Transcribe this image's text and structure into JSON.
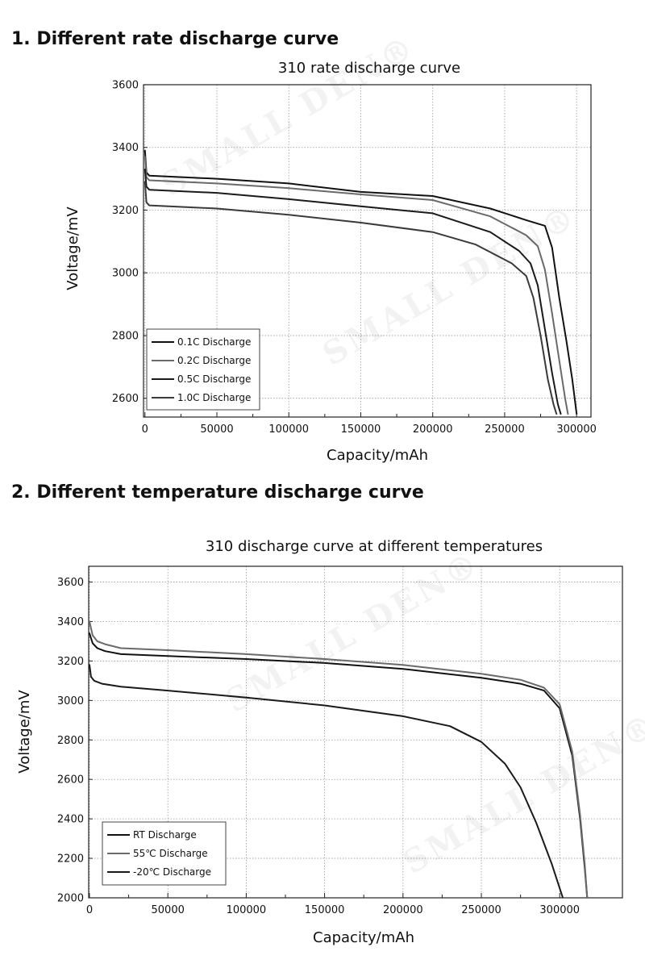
{
  "sections": [
    {
      "heading": "1. Different rate discharge curve"
    },
    {
      "heading": "2. Different temperature discharge curve"
    }
  ],
  "watermark": {
    "text": "SMALL DEN®"
  },
  "chart_data": [
    {
      "type": "line",
      "title": "310 rate discharge curve",
      "xlabel": "Capacity/mAh",
      "ylabel": "Voltage/mV",
      "xlim": [
        -1000,
        310000
      ],
      "ylim": [
        2540,
        3600
      ],
      "xticks": [
        0,
        50000,
        100000,
        150000,
        200000,
        250000,
        300000
      ],
      "yticks": [
        2600,
        2800,
        3000,
        3200,
        3400,
        3600
      ],
      "grid": true,
      "legend_position": "bottom-left",
      "colors": [
        "#111111",
        "#6a6a6a",
        "#1a1a1a",
        "#3a3a3a"
      ],
      "series": [
        {
          "name": "0.1C Discharge",
          "x": [
            0,
            1000,
            3000,
            50000,
            100000,
            150000,
            200000,
            240000,
            265000,
            278000,
            283000,
            288000,
            293000,
            297000,
            300000
          ],
          "y": [
            3390,
            3320,
            3310,
            3300,
            3285,
            3258,
            3245,
            3205,
            3168,
            3150,
            3080,
            2920,
            2780,
            2660,
            2550
          ]
        },
        {
          "name": "0.2C Discharge",
          "x": [
            0,
            1000,
            3000,
            50000,
            100000,
            150000,
            200000,
            240000,
            265000,
            273000,
            278000,
            283000,
            288000,
            292000,
            294000
          ],
          "y": [
            3370,
            3305,
            3295,
            3285,
            3270,
            3250,
            3232,
            3180,
            3120,
            3085,
            3010,
            2870,
            2720,
            2600,
            2550
          ]
        },
        {
          "name": "0.5C Discharge",
          "x": [
            0,
            1000,
            3000,
            50000,
            100000,
            150000,
            200000,
            240000,
            260000,
            268000,
            273000,
            278000,
            283000,
            287000,
            289000
          ],
          "y": [
            3330,
            3275,
            3265,
            3255,
            3235,
            3212,
            3190,
            3130,
            3070,
            3030,
            2960,
            2820,
            2680,
            2580,
            2550
          ]
        },
        {
          "name": "1.0C Discharge",
          "x": [
            0,
            1000,
            3000,
            50000,
            100000,
            150000,
            200000,
            230000,
            255000,
            265000,
            270000,
            275000,
            280000,
            284000,
            286000
          ],
          "y": [
            3290,
            3225,
            3215,
            3205,
            3185,
            3160,
            3130,
            3090,
            3030,
            2990,
            2920,
            2800,
            2660,
            2580,
            2550
          ]
        }
      ]
    },
    {
      "type": "line",
      "title": "310 discharge curve at different temperatures",
      "xlabel": "Capacity/mAh",
      "ylabel": "Voltage/mV",
      "xlim": [
        -500,
        340000
      ],
      "ylim": [
        2000,
        3680
      ],
      "xticks": [
        0,
        50000,
        100000,
        150000,
        200000,
        250000,
        300000
      ],
      "yticks": [
        2000,
        2200,
        2400,
        2600,
        2800,
        3000,
        3200,
        3400,
        3600
      ],
      "grid": true,
      "legend_position": "bottom-left",
      "colors": [
        "#111111",
        "#6a6a6a",
        "#1a1a1a"
      ],
      "series": [
        {
          "name": "RT  Discharge",
          "x": [
            0,
            2000,
            5000,
            10000,
            20000,
            50000,
            100000,
            150000,
            200000,
            250000,
            275000,
            290000,
            300000,
            308000,
            313000,
            316000,
            317500
          ],
          "y": [
            3340,
            3290,
            3265,
            3250,
            3235,
            3225,
            3210,
            3190,
            3160,
            3115,
            3085,
            3050,
            2960,
            2720,
            2400,
            2150,
            2000
          ]
        },
        {
          "name": "55℃ Discharge",
          "x": [
            0,
            2000,
            5000,
            10000,
            20000,
            50000,
            100000,
            150000,
            200000,
            250000,
            275000,
            290000,
            300000,
            308000,
            313000,
            316000,
            317500
          ],
          "y": [
            3400,
            3330,
            3300,
            3285,
            3265,
            3255,
            3235,
            3210,
            3180,
            3135,
            3105,
            3065,
            2980,
            2740,
            2420,
            2170,
            2000
          ]
        },
        {
          "name": "-20℃ Discharge",
          "x": [
            0,
            1000,
            3000,
            8000,
            20000,
            50000,
            100000,
            150000,
            200000,
            230000,
            250000,
            265000,
            275000,
            285000,
            295000,
            302000
          ],
          "y": [
            3180,
            3120,
            3100,
            3085,
            3070,
            3050,
            3015,
            2975,
            2920,
            2870,
            2790,
            2680,
            2560,
            2380,
            2170,
            2000
          ]
        }
      ]
    }
  ]
}
